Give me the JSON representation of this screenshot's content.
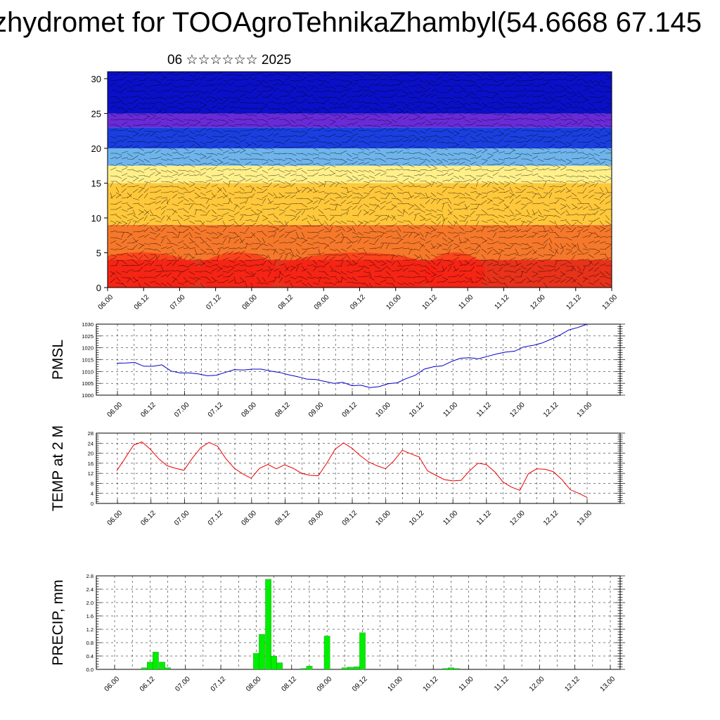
{
  "title": "zhydromet for TOOAgroTehnikaZhambyl(54.6668 67.145",
  "subtitle": "06 ☆☆☆☆☆☆ 2025",
  "chart_data": [
    {
      "type": "heatmap",
      "name": "cross-section",
      "y_ticks": [
        "0",
        "5",
        "10",
        "15",
        "20",
        "25",
        "30"
      ],
      "ylim": [
        0,
        31
      ],
      "x_ticks": [
        "06.00",
        "06.12",
        "07.00",
        "07.12",
        "08.00",
        "08.12",
        "09.00",
        "09.12",
        "10.00",
        "10.12",
        "11.00",
        "11.12",
        "12.00",
        "12.12",
        "13.00"
      ],
      "color_bands": [
        {
          "from": 0,
          "to": 4,
          "color": "#e8321a"
        },
        {
          "from": 4,
          "to": 9,
          "color": "#f6782a"
        },
        {
          "from": 9,
          "to": 15,
          "color": "#ffc83a"
        },
        {
          "from": 15,
          "to": 17.5,
          "color": "#fff08a"
        },
        {
          "from": 17.5,
          "to": 20,
          "color": "#6fb5ec"
        },
        {
          "from": 20,
          "to": 23,
          "color": "#1a3fe0"
        },
        {
          "from": 23,
          "to": 25,
          "color": "#6a2ad8"
        },
        {
          "from": 25,
          "to": 31,
          "color": "#0a10c8"
        }
      ]
    },
    {
      "type": "line",
      "ylabel": "PMSL",
      "ylim": [
        1000,
        1030
      ],
      "y_ticks": [
        "1000",
        "1005",
        "1010",
        "1015",
        "1020",
        "1025",
        "1030"
      ],
      "x_ticks": [
        "06.00",
        "06.12",
        "07.00",
        "07.12",
        "08.00",
        "08.12",
        "09.00",
        "09.12",
        "10.00",
        "10.12",
        "11.00",
        "11.12",
        "12.00",
        "12.12",
        "13.00"
      ],
      "series": [
        {
          "color": "#0000cc",
          "values": [
            1013.5,
            1013.6,
            1013.8,
            1012.2,
            1012.2,
            1012.8,
            1010.2,
            1009.4,
            1009.4,
            1009,
            1008.2,
            1008.4,
            1009.6,
            1010.8,
            1010.6,
            1011,
            1011,
            1010.2,
            1009.6,
            1008.6,
            1007.8,
            1006.8,
            1006.6,
            1005.8,
            1005,
            1005.4,
            1004,
            1004.2,
            1003.2,
            1003.6,
            1004.8,
            1005.2,
            1007,
            1008.4,
            1011,
            1012,
            1012.4,
            1014.2,
            1015.6,
            1015.8,
            1015.4,
            1016.4,
            1017.4,
            1018.2,
            1018.6,
            1020.4,
            1021,
            1022,
            1023.6,
            1025.4,
            1027.6,
            1028.6,
            1030
          ]
        }
      ]
    },
    {
      "type": "line",
      "ylabel": "TEMP at 2 M",
      "ylim": [
        0,
        28
      ],
      "y_ticks": [
        "0",
        "4",
        "8",
        "12",
        "16",
        "20",
        "24",
        "28"
      ],
      "x_ticks": [
        "06.00",
        "06.12",
        "07.00",
        "07.12",
        "08.00",
        "08.12",
        "09.00",
        "09.12",
        "10.00",
        "10.12",
        "11.00",
        "11.12",
        "12.00",
        "12.12",
        "13.00"
      ],
      "series": [
        {
          "color": "#ee0000",
          "values": [
            13,
            18,
            23.2,
            24.5,
            21.6,
            17.8,
            15,
            14,
            13.2,
            18,
            22.2,
            24.3,
            22.8,
            17.8,
            14,
            11.8,
            10,
            14,
            15.5,
            13.8,
            15.4,
            14,
            12,
            11.2,
            11,
            16,
            21.6,
            24.1,
            22,
            19,
            16.5,
            15,
            13.8,
            17,
            21.2,
            19.8,
            18.5,
            13,
            11.2,
            9.5,
            9,
            9.2,
            13,
            16,
            15.5,
            12.6,
            8.5,
            6.5,
            5.2,
            11.8,
            13.8,
            13.6,
            12.6,
            9.5,
            5.5,
            4,
            2.4
          ]
        }
      ]
    },
    {
      "type": "bar",
      "ylabel": "PRECIP, mm",
      "ylim": [
        0,
        2.8
      ],
      "y_ticks": [
        "0.0",
        "0.4",
        "0.8",
        "1.2",
        "1.6",
        "2.0",
        "2.4",
        "2.8"
      ],
      "x_ticks": [
        "06.00",
        "06.12",
        "07.00",
        "07.12",
        "08.00",
        "08.12",
        "09.00",
        "09.12",
        "10.00",
        "10.12",
        "11.00",
        "11.12",
        "12.00",
        "12.12",
        "13.00"
      ],
      "bar_color": "#00ee00",
      "bars": [
        {
          "t": 0.42,
          "v": 0.05
        },
        {
          "t": 0.5,
          "v": 0.22
        },
        {
          "t": 0.58,
          "v": 0.52
        },
        {
          "t": 0.67,
          "v": 0.22
        },
        {
          "t": 0.75,
          "v": 0.05
        },
        {
          "t": 2.0,
          "v": 0.48
        },
        {
          "t": 2.08,
          "v": 1.05
        },
        {
          "t": 2.17,
          "v": 2.7
        },
        {
          "t": 2.25,
          "v": 0.4
        },
        {
          "t": 2.33,
          "v": 0.2
        },
        {
          "t": 2.67,
          "v": 0.03
        },
        {
          "t": 2.75,
          "v": 0.1
        },
        {
          "t": 3.0,
          "v": 1.0
        },
        {
          "t": 3.25,
          "v": 0.05
        },
        {
          "t": 3.33,
          "v": 0.07
        },
        {
          "t": 3.42,
          "v": 0.08
        },
        {
          "t": 3.5,
          "v": 1.1
        },
        {
          "t": 4.67,
          "v": 0.03
        },
        {
          "t": 4.75,
          "v": 0.05
        },
        {
          "t": 4.83,
          "v": 0.03
        }
      ]
    }
  ]
}
